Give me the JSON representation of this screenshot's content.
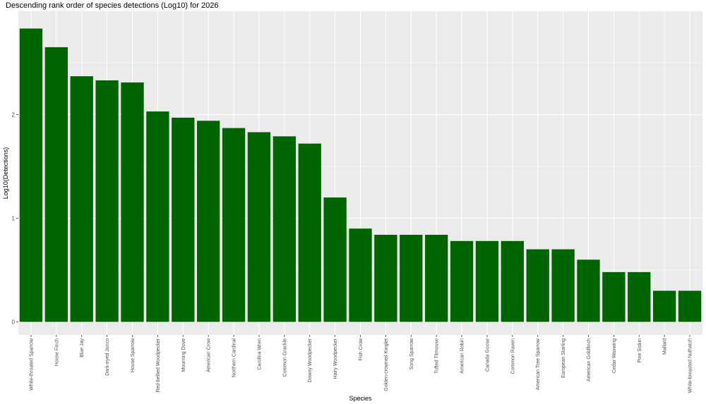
{
  "chart_data": {
    "type": "bar",
    "title": "Descending rank order of species detections (Log10) for 2026",
    "xlabel": "Species",
    "ylabel": "Log10(Detections)",
    "categories": [
      "White-throated Sparrow",
      "House Finch",
      "Blue Jay",
      "Dark-eyed Junco",
      "House Sparrow",
      "Red-bellied Woodpecker",
      "Mourning Dove",
      "American Crow",
      "Northern Cardinal",
      "Carolina Wren",
      "Common Grackle",
      "Downy Woodpecker",
      "Hairy Woodpecker",
      "Fish Crow",
      "Golden-crowned Kinglet",
      "Song Sparrow",
      "Tufted Titmouse",
      "American Robin",
      "Canada Goose",
      "Common Raven",
      "American Tree Sparrow",
      "European Starling",
      "American Goldfinch",
      "Cedar Waxwing",
      "Pine Siskin",
      "Mallard",
      "White-breasted Nuthatch"
    ],
    "values": [
      2.83,
      2.65,
      2.37,
      2.33,
      2.31,
      2.03,
      1.97,
      1.94,
      1.87,
      1.83,
      1.79,
      1.72,
      1.2,
      0.9,
      0.84,
      0.84,
      0.84,
      0.78,
      0.78,
      0.78,
      0.7,
      0.7,
      0.6,
      0.48,
      0.48,
      0.3,
      0.3
    ],
    "yticks": [
      0,
      1,
      2
    ],
    "ylim": [
      0,
      2.97
    ],
    "bar_color": "#006400",
    "panel_background": "#ebebeb",
    "gridline_color": "#ffffff",
    "grid": true,
    "legend": "none"
  }
}
